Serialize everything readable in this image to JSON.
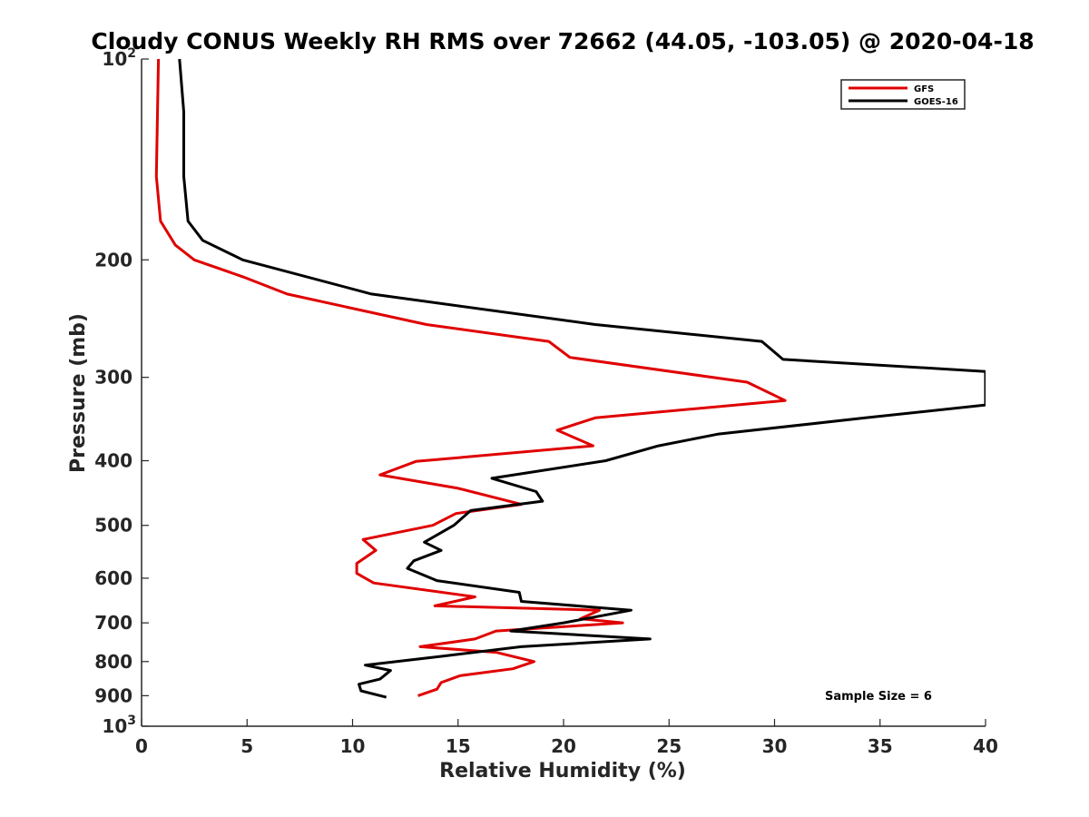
{
  "chart_data": {
    "type": "line",
    "title": "Cloudy CONUS Weekly RH RMS over 72662 (44.05, -103.05) @ 2020-04-18",
    "xlabel": "Relative Humidity (%)",
    "ylabel": "Pressure (mb)",
    "xlim": [
      0,
      40
    ],
    "ylim": [
      100,
      1000
    ],
    "y_scale": "log",
    "y_reversed": true,
    "grid": false,
    "legend_position": "top-right",
    "x_ticks": [
      "0",
      "5",
      "10",
      "15",
      "20",
      "25",
      "30",
      "35",
      "40"
    ],
    "x_tick_values": [
      0,
      5,
      10,
      15,
      20,
      25,
      30,
      35,
      40
    ],
    "y_ticks": [
      {
        "value": 100,
        "base": "10",
        "exp": "2"
      },
      {
        "value": 200,
        "base": "200",
        "exp": ""
      },
      {
        "value": 300,
        "base": "300",
        "exp": ""
      },
      {
        "value": 400,
        "base": "400",
        "exp": ""
      },
      {
        "value": 500,
        "base": "500",
        "exp": ""
      },
      {
        "value": 600,
        "base": "600",
        "exp": ""
      },
      {
        "value": 700,
        "base": "700",
        "exp": ""
      },
      {
        "value": 800,
        "base": "800",
        "exp": ""
      },
      {
        "value": 900,
        "base": "900",
        "exp": ""
      },
      {
        "value": 1000,
        "base": "10",
        "exp": "3"
      }
    ],
    "series": [
      {
        "name": "GFS",
        "color": "#e00000",
        "points": [
          [
            0.8,
            100
          ],
          [
            0.7,
            150
          ],
          [
            0.9,
            175
          ],
          [
            1.6,
            190
          ],
          [
            2.5,
            200
          ],
          [
            4.8,
            212
          ],
          [
            6.9,
            225
          ],
          [
            13.5,
            250
          ],
          [
            19.3,
            265
          ],
          [
            20.3,
            280
          ],
          [
            28.7,
            305
          ],
          [
            30.5,
            325
          ],
          [
            21.5,
            345
          ],
          [
            19.7,
            360
          ],
          [
            21.4,
            380
          ],
          [
            13.0,
            401
          ],
          [
            11.3,
            420
          ],
          [
            15.0,
            440
          ],
          [
            18.0,
            465
          ],
          [
            14.9,
            480
          ],
          [
            13.8,
            500
          ],
          [
            10.5,
            525
          ],
          [
            11.1,
            545
          ],
          [
            10.2,
            570
          ],
          [
            10.2,
            590
          ],
          [
            11.0,
            610
          ],
          [
            15.8,
            640
          ],
          [
            13.9,
            660
          ],
          [
            21.7,
            670
          ],
          [
            20.8,
            690
          ],
          [
            22.8,
            700
          ],
          [
            16.8,
            720
          ],
          [
            15.8,
            740
          ],
          [
            13.2,
            760
          ],
          [
            16.8,
            775
          ],
          [
            18.6,
            800
          ],
          [
            17.6,
            820
          ],
          [
            15.1,
            840
          ],
          [
            14.2,
            860
          ],
          [
            14.0,
            880
          ],
          [
            13.1,
            900
          ]
        ]
      },
      {
        "name": "GOES-16",
        "color": "#000000",
        "points": [
          [
            1.8,
            100
          ],
          [
            2.0,
            120
          ],
          [
            2.0,
            150
          ],
          [
            2.2,
            175
          ],
          [
            2.9,
            187
          ],
          [
            4.8,
            200
          ],
          [
            10.9,
            225
          ],
          [
            21.5,
            250
          ],
          [
            29.4,
            265
          ],
          [
            30.4,
            282
          ],
          [
            40.0,
            294
          ],
          [
            40.0,
            330
          ],
          [
            34.3,
            345
          ],
          [
            27.3,
            365
          ],
          [
            24.5,
            380
          ],
          [
            22.0,
            400
          ],
          [
            16.6,
            425
          ],
          [
            18.7,
            445
          ],
          [
            19.0,
            460
          ],
          [
            15.6,
            475
          ],
          [
            14.8,
            500
          ],
          [
            13.4,
            530
          ],
          [
            14.2,
            545
          ],
          [
            12.9,
            565
          ],
          [
            12.6,
            580
          ],
          [
            14.0,
            605
          ],
          [
            17.9,
            630
          ],
          [
            18.0,
            650
          ],
          [
            23.2,
            670
          ],
          [
            20.0,
            700
          ],
          [
            17.5,
            720
          ],
          [
            24.1,
            740
          ],
          [
            18.0,
            760
          ],
          [
            14.3,
            785
          ],
          [
            10.6,
            810
          ],
          [
            11.8,
            825
          ],
          [
            11.3,
            850
          ],
          [
            10.3,
            865
          ],
          [
            10.4,
            885
          ],
          [
            11.6,
            905
          ]
        ]
      }
    ],
    "annotations": [
      {
        "text": "Sample Size = 6"
      }
    ]
  }
}
